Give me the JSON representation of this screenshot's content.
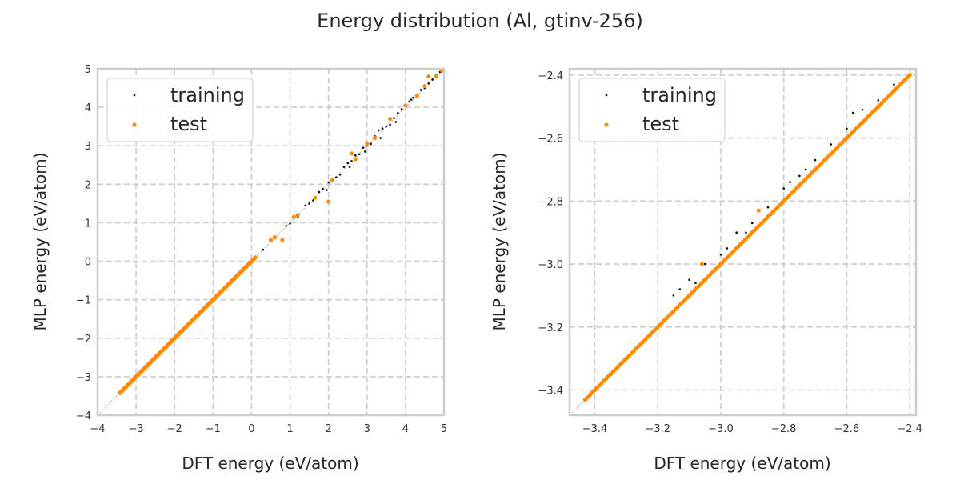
{
  "figure": {
    "title": "Energy distribution (Al, gtinv-256)"
  },
  "colors": {
    "training": "#000000",
    "test": "#ff8c00",
    "grid": "#cccccc",
    "frame": "#cccccc",
    "diagonal": "#999999"
  },
  "chart_data": [
    {
      "type": "scatter",
      "xlabel": "DFT energy (eV/atom)",
      "ylabel": "MLP energy (eV/atom)",
      "xlim": [
        -4,
        5
      ],
      "ylim": [
        -4,
        5
      ],
      "xticks": [
        -4,
        -3,
        -2,
        -1,
        0,
        1,
        2,
        3,
        4,
        5
      ],
      "yticks": [
        -4,
        -3,
        -2,
        -1,
        0,
        1,
        2,
        3,
        4,
        5
      ],
      "xtick_labels": [
        "−4",
        "−3",
        "−2",
        "−1",
        "0",
        "1",
        "2",
        "3",
        "4",
        "5"
      ],
      "ytick_labels": [
        "−4",
        "−3",
        "−2",
        "−1",
        "0",
        "1",
        "2",
        "3",
        "4",
        "5"
      ],
      "grid": true,
      "legend": "upper left",
      "series": [
        {
          "name": "training",
          "marker": "small dot",
          "points": [
            [
              -3.38,
              -3.39
            ],
            [
              -3.1,
              -3.1
            ],
            [
              -2.6,
              -2.61
            ],
            [
              -2.0,
              -2.0
            ],
            [
              -1.5,
              -1.5
            ],
            [
              -1.0,
              -1.0
            ],
            [
              -0.5,
              -0.5
            ],
            [
              0.0,
              0.0
            ],
            [
              0.3,
              0.3
            ],
            [
              0.6,
              0.62
            ],
            [
              0.9,
              0.92
            ],
            [
              1.0,
              0.98
            ],
            [
              1.2,
              1.15
            ],
            [
              1.4,
              1.45
            ],
            [
              1.5,
              1.5
            ],
            [
              1.6,
              1.58
            ],
            [
              1.75,
              1.8
            ],
            [
              1.85,
              1.88
            ],
            [
              2.0,
              2.05
            ],
            [
              2.1,
              2.12
            ],
            [
              2.2,
              2.18
            ],
            [
              2.3,
              2.25
            ],
            [
              2.4,
              2.45
            ],
            [
              2.5,
              2.55
            ],
            [
              2.6,
              2.6
            ],
            [
              2.7,
              2.75
            ],
            [
              2.8,
              2.78
            ],
            [
              2.9,
              2.95
            ],
            [
              3.0,
              3.0
            ],
            [
              3.1,
              3.05
            ],
            [
              3.2,
              3.25
            ],
            [
              3.3,
              3.4
            ],
            [
              3.4,
              3.45
            ],
            [
              3.5,
              3.5
            ],
            [
              3.6,
              3.55
            ],
            [
              3.7,
              3.72
            ],
            [
              3.8,
              3.85
            ],
            [
              3.9,
              3.95
            ],
            [
              4.0,
              4.05
            ],
            [
              4.1,
              4.15
            ],
            [
              4.2,
              4.25
            ],
            [
              4.3,
              4.3
            ],
            [
              4.4,
              4.45
            ],
            [
              4.5,
              4.5
            ],
            [
              4.6,
              4.62
            ],
            [
              4.7,
              4.72
            ],
            [
              4.8,
              4.85
            ],
            [
              4.9,
              4.92
            ],
            [
              2.95,
              2.85
            ],
            [
              3.35,
              3.2
            ],
            [
              2.55,
              2.45
            ],
            [
              4.15,
              4.2
            ],
            [
              3.75,
              3.62
            ],
            [
              1.95,
              1.85
            ]
          ]
        },
        {
          "name": "test",
          "marker": "dot",
          "points": [
            [
              -3.42,
              -3.42
            ],
            [
              -3.3,
              -3.3
            ],
            [
              -3.0,
              -3.0
            ],
            [
              -2.7,
              -2.7
            ],
            [
              -2.4,
              -2.4
            ],
            [
              -2.0,
              -2.0
            ],
            [
              -1.6,
              -1.6
            ],
            [
              -1.2,
              -1.2
            ],
            [
              -0.9,
              -0.9
            ],
            [
              -0.5,
              -0.5
            ],
            [
              -0.2,
              -0.2
            ],
            [
              0.0,
              0.0
            ],
            [
              0.5,
              0.55
            ],
            [
              0.6,
              0.62
            ],
            [
              0.8,
              0.55
            ],
            [
              1.1,
              1.15
            ],
            [
              1.2,
              1.2
            ],
            [
              1.65,
              1.65
            ],
            [
              2.0,
              1.55
            ],
            [
              2.1,
              2.1
            ],
            [
              2.6,
              2.8
            ],
            [
              2.7,
              2.65
            ],
            [
              3.0,
              3.05
            ],
            [
              3.2,
              3.2
            ],
            [
              3.6,
              3.7
            ],
            [
              4.0,
              4.05
            ],
            [
              4.3,
              4.3
            ],
            [
              4.5,
              4.55
            ],
            [
              4.6,
              4.8
            ],
            [
              4.8,
              4.8
            ],
            [
              4.95,
              4.95
            ]
          ]
        }
      ]
    },
    {
      "type": "scatter",
      "xlabel": "DFT energy (eV/atom)",
      "ylabel": "MLP energy (eV/atom)",
      "xlim": [
        -3.48,
        -2.38
      ],
      "ylim": [
        -3.48,
        -2.38
      ],
      "xticks": [
        -3.4,
        -3.2,
        -3.0,
        -2.8,
        -2.6,
        -2.4
      ],
      "yticks": [
        -3.4,
        -3.2,
        -3.0,
        -2.8,
        -2.6,
        -2.4
      ],
      "xtick_labels": [
        "−3.4",
        "−3.2",
        "−3.0",
        "−2.8",
        "−2.6",
        "−2.4"
      ],
      "ytick_labels": [
        "−3.4",
        "−3.2",
        "−3.0",
        "−2.8",
        "−2.6",
        "−2.4"
      ],
      "grid": true,
      "legend": "upper left",
      "series": [
        {
          "name": "training",
          "marker": "small dot",
          "points": [
            [
              -3.42,
              -3.42
            ],
            [
              -3.3,
              -3.3
            ],
            [
              -3.15,
              -3.1
            ],
            [
              -3.13,
              -3.08
            ],
            [
              -3.1,
              -3.05
            ],
            [
              -3.08,
              -3.06
            ],
            [
              -3.05,
              -3.0
            ],
            [
              -3.0,
              -2.97
            ],
            [
              -2.98,
              -2.95
            ],
            [
              -2.95,
              -2.9
            ],
            [
              -2.9,
              -2.87
            ],
            [
              -2.85,
              -2.82
            ],
            [
              -2.8,
              -2.76
            ],
            [
              -2.75,
              -2.72
            ],
            [
              -2.73,
              -2.7
            ],
            [
              -2.7,
              -2.67
            ],
            [
              -2.65,
              -2.62
            ],
            [
              -2.6,
              -2.57
            ],
            [
              -2.58,
              -2.52
            ],
            [
              -2.55,
              -2.51
            ],
            [
              -2.5,
              -2.48
            ],
            [
              -2.45,
              -2.43
            ],
            [
              -2.4,
              -2.4
            ],
            [
              -2.92,
              -2.9
            ],
            [
              -2.78,
              -2.74
            ]
          ]
        },
        {
          "name": "test",
          "marker": "dot",
          "points": [
            [
              -3.43,
              -3.43
            ],
            [
              -3.4,
              -3.4
            ],
            [
              -3.35,
              -3.35
            ],
            [
              -3.3,
              -3.3
            ],
            [
              -3.25,
              -3.25
            ],
            [
              -3.2,
              -3.2
            ],
            [
              -3.15,
              -3.15
            ],
            [
              -3.1,
              -3.1
            ],
            [
              -3.05,
              -3.05
            ],
            [
              -3.06,
              -3.0
            ],
            [
              -3.0,
              -3.0
            ],
            [
              -2.95,
              -2.95
            ],
            [
              -2.9,
              -2.9
            ],
            [
              -2.88,
              -2.83
            ],
            [
              -2.85,
              -2.85
            ],
            [
              -2.8,
              -2.8
            ],
            [
              -2.75,
              -2.75
            ],
            [
              -2.7,
              -2.7
            ],
            [
              -2.65,
              -2.65
            ],
            [
              -2.6,
              -2.6
            ],
            [
              -2.55,
              -2.55
            ],
            [
              -2.5,
              -2.5
            ],
            [
              -2.45,
              -2.45
            ],
            [
              -2.4,
              -2.4
            ]
          ]
        }
      ]
    }
  ]
}
